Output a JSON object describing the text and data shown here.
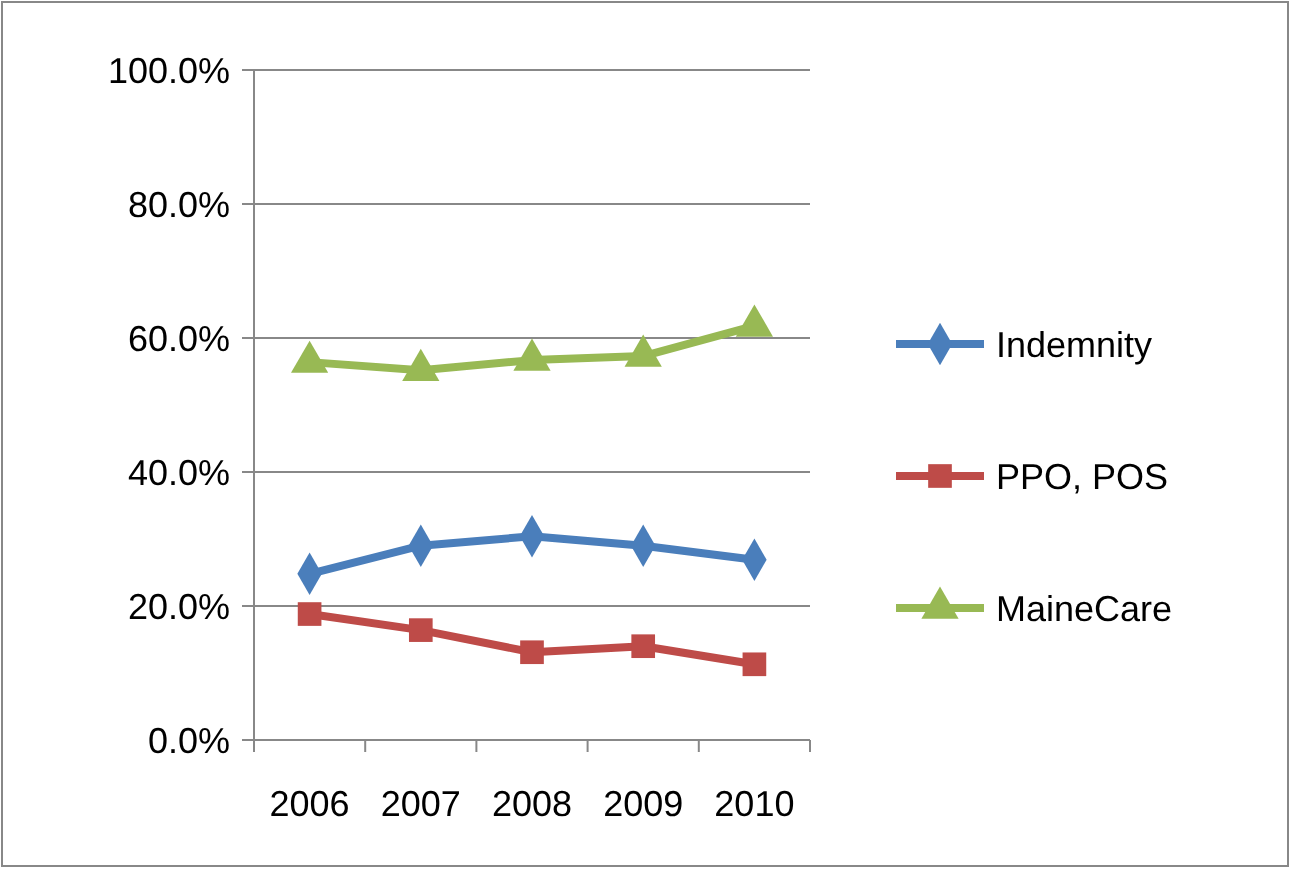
{
  "chart_data": {
    "type": "line",
    "categories": [
      "2006",
      "2007",
      "2008",
      "2009",
      "2010"
    ],
    "series": [
      {
        "name": "Indemnity",
        "color": "#4a7ebb",
        "marker": "diamond",
        "values": [
          24.8,
          29.0,
          30.4,
          29.0,
          26.9
        ]
      },
      {
        "name": "PPO, POS",
        "color": "#be4b48",
        "marker": "square",
        "values": [
          18.8,
          16.4,
          13.1,
          14.0,
          11.3
        ]
      },
      {
        "name": "MaineCare",
        "color": "#98b954",
        "marker": "triangle",
        "values": [
          56.4,
          55.2,
          56.7,
          57.3,
          61.8
        ]
      }
    ],
    "ylim": [
      0,
      100
    ],
    "yticks": [
      {
        "value": 0,
        "label": "0.0%"
      },
      {
        "value": 20,
        "label": "20.0%"
      },
      {
        "value": 40,
        "label": "40.0%"
      },
      {
        "value": 60,
        "label": "60.0%"
      },
      {
        "value": 80,
        "label": "80.0%"
      },
      {
        "value": 100,
        "label": "100.0%"
      }
    ],
    "grid": "y",
    "legend": "right",
    "line_style": "solid"
  }
}
